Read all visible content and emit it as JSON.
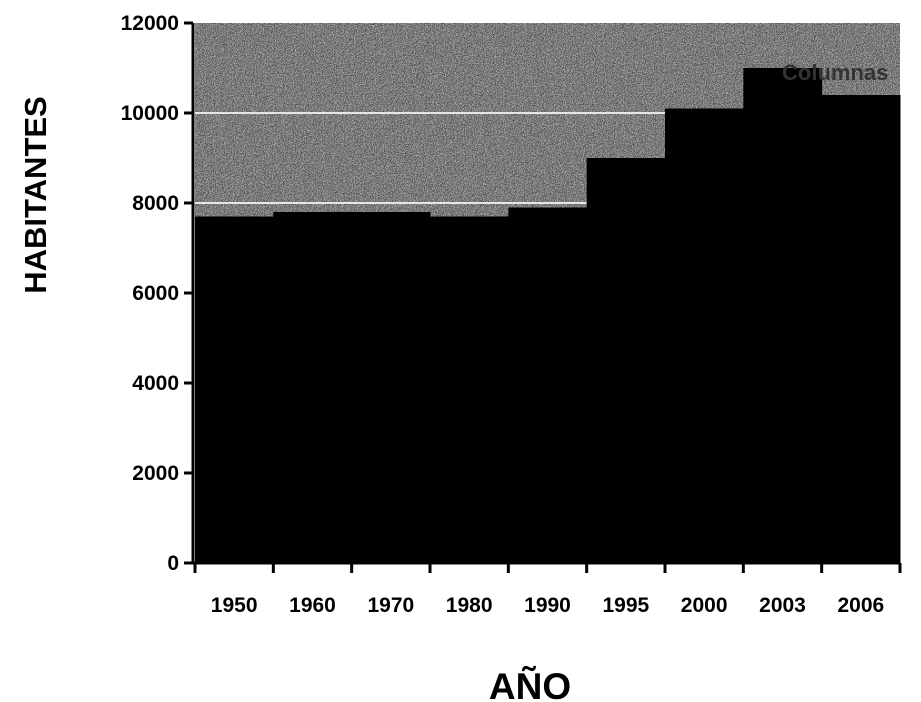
{
  "chart_data": {
    "type": "bar",
    "title": "",
    "xlabel": "AÑO",
    "ylabel": "HABITANTES",
    "legend": "Columnas",
    "legend_position": "top-right",
    "categories": [
      "1950",
      "1960",
      "1970",
      "1980",
      "1990",
      "1995",
      "2000",
      "2003",
      "2006"
    ],
    "values": [
      7700,
      7800,
      7800,
      7700,
      7900,
      9000,
      10100,
      11000,
      10400
    ],
    "ylim": [
      0,
      12000
    ],
    "yticks": [
      0,
      2000,
      4000,
      6000,
      8000,
      10000,
      12000
    ],
    "gridlines": [
      8000,
      10000
    ],
    "grid": true,
    "colors": {
      "bars": "#000000",
      "plot_background": "#7a7a7a",
      "gridline": "#e6e6e6"
    }
  }
}
